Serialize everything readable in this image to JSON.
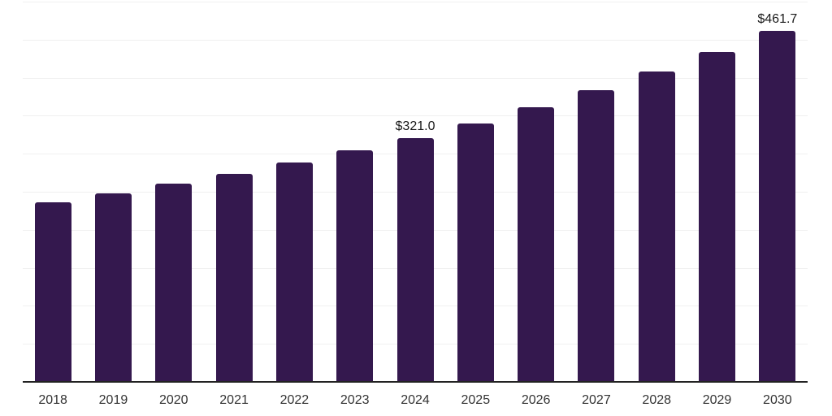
{
  "chart": {
    "background_color": "#ffffff",
    "bar_color": "#34184e",
    "gridline_color": "#f0f0f0",
    "axis_color": "#222222",
    "tick_label_color": "#333333",
    "value_label_color": "#1a1a1a"
  },
  "chart_data": {
    "type": "bar",
    "title": "",
    "xlabel": "",
    "ylabel": "",
    "categories": [
      "2018",
      "2019",
      "2020",
      "2021",
      "2022",
      "2023",
      "2024",
      "2025",
      "2026",
      "2027",
      "2028",
      "2029",
      "2030"
    ],
    "values": [
      236.2,
      248.2,
      260.7,
      273.5,
      288.2,
      304.8,
      321.0,
      340.2,
      360.9,
      383.6,
      408.1,
      434.2,
      461.7
    ],
    "data_labels": [
      {
        "category": "2024",
        "text": "$321.0"
      },
      {
        "category": "2030",
        "text": "$461.7"
      }
    ],
    "ylim": [
      0,
      500
    ],
    "gridline_step": 50,
    "grid": true,
    "legend": false,
    "y_axis_labels_visible": false,
    "value_prefix": "$"
  }
}
